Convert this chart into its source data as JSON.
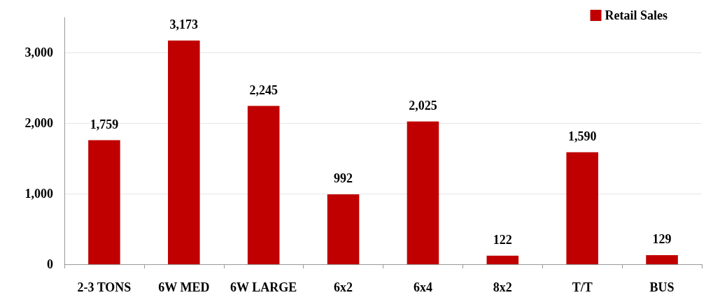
{
  "chart_data": {
    "type": "bar",
    "categories": [
      "2-3 TONS",
      "6W MED",
      "6W LARGE",
      "6x2",
      "6x4",
      "8x2",
      "T/T",
      "BUS"
    ],
    "series": [
      {
        "name": "Retail Sales",
        "color": "#c00000",
        "values": [
          1759,
          3173,
          2245,
          992,
          2025,
          122,
          1590,
          129
        ],
        "value_labels": [
          "1,759",
          "3,173",
          "2,245",
          "992",
          "2,025",
          "122",
          "1,590",
          "129"
        ]
      }
    ],
    "ylim": [
      0,
      3500
    ],
    "yticks": [
      0,
      {
        "value": 1000,
        "label": "1,000"
      },
      {
        "value": 2000,
        "label": "2,000"
      },
      {
        "value": 3000,
        "label": "3,000"
      }
    ],
    "grid": "y",
    "legend": "top right"
  }
}
